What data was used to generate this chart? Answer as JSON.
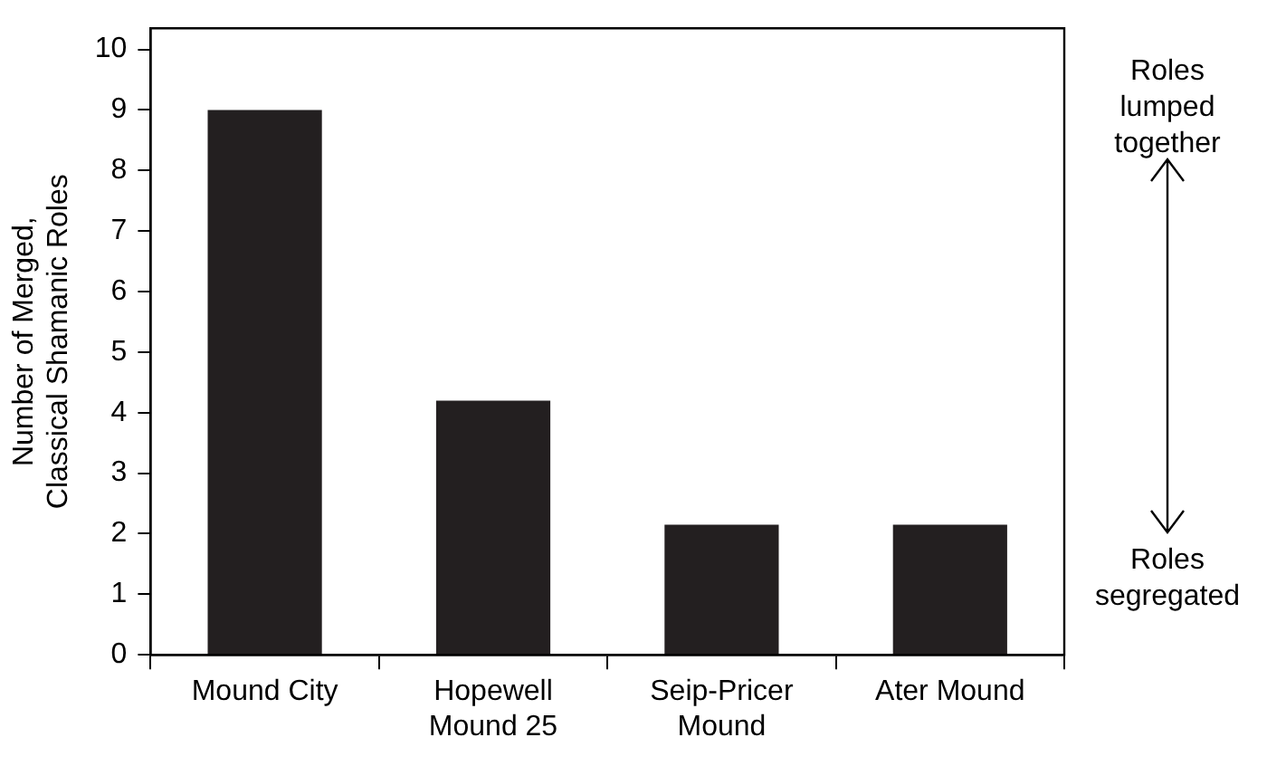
{
  "chart_data": {
    "type": "bar",
    "ylabel": "Number of Merged, Classical Shamanic Roles",
    "categories": [
      "Mound City",
      "Hopewell Mound 25",
      "Seip-Pricer Mound",
      "Ater Mound"
    ],
    "values": [
      9,
      4.2,
      2.15,
      2.15
    ],
    "color": "#231f20",
    "ylim": [
      0,
      10.35
    ],
    "yticks": [
      0,
      1,
      2,
      3,
      4,
      5,
      6,
      7,
      8,
      9,
      10
    ],
    "grid": false,
    "legend": false,
    "annotations": [
      "Roles lumped together",
      "Roles segregated"
    ]
  }
}
